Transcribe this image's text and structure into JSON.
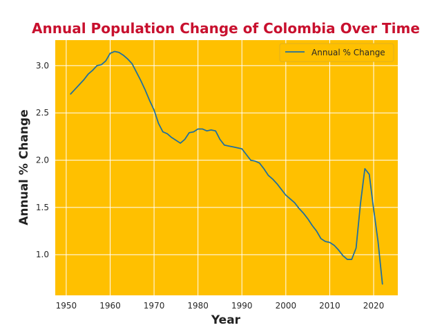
{
  "chart_data": {
    "type": "line",
    "title": "Annual Population Change of Colombia Over Time",
    "xlabel": "Year",
    "ylabel": "Annual % Change",
    "xlim": [
      1947.5,
      2025.5
    ],
    "ylim": [
      0.57,
      3.27
    ],
    "xticks": [
      1950,
      1960,
      1970,
      1980,
      1990,
      2000,
      2010,
      2020
    ],
    "yticks": [
      1.0,
      1.5,
      2.0,
      2.5,
      3.0
    ],
    "xtick_labels": [
      "1950",
      "1960",
      "1970",
      "1980",
      "1990",
      "2000",
      "2010",
      "2020"
    ],
    "ytick_labels": [
      "1.0",
      "1.5",
      "2.0",
      "2.5",
      "3.0"
    ],
    "grid": true,
    "legend_position": "top-right",
    "colors": {
      "plot_background": "#ffc000",
      "grid": "#ffffff",
      "line": "#1f6f9f",
      "title": "#c8102e"
    },
    "series": [
      {
        "name": "Annual % Change",
        "x": [
          1951,
          1952,
          1953,
          1954,
          1955,
          1956,
          1957,
          1958,
          1959,
          1960,
          1961,
          1962,
          1963,
          1964,
          1965,
          1966,
          1967,
          1968,
          1969,
          1970,
          1971,
          1972,
          1973,
          1974,
          1975,
          1976,
          1977,
          1978,
          1979,
          1980,
          1981,
          1982,
          1983,
          1984,
          1985,
          1986,
          1987,
          1988,
          1989,
          1990,
          1991,
          1992,
          1993,
          1994,
          1995,
          1996,
          1997,
          1998,
          1999,
          2000,
          2001,
          2002,
          2003,
          2004,
          2005,
          2006,
          2007,
          2008,
          2009,
          2010,
          2011,
          2012,
          2013,
          2014,
          2015,
          2016,
          2017,
          2018,
          2019,
          2020,
          2021,
          2022
        ],
        "values": [
          2.7,
          2.75,
          2.8,
          2.85,
          2.91,
          2.95,
          3.0,
          3.01,
          3.05,
          3.13,
          3.15,
          3.14,
          3.11,
          3.07,
          3.02,
          2.93,
          2.84,
          2.74,
          2.63,
          2.53,
          2.39,
          2.3,
          2.28,
          2.24,
          2.21,
          2.18,
          2.22,
          2.29,
          2.3,
          2.33,
          2.33,
          2.31,
          2.32,
          2.31,
          2.22,
          2.16,
          2.15,
          2.14,
          2.13,
          2.12,
          2.06,
          2.0,
          1.99,
          1.97,
          1.91,
          1.84,
          1.8,
          1.75,
          1.69,
          1.63,
          1.59,
          1.55,
          1.49,
          1.44,
          1.38,
          1.31,
          1.25,
          1.17,
          1.14,
          1.13,
          1.1,
          1.05,
          0.99,
          0.95,
          0.95,
          1.07,
          1.54,
          1.91,
          1.85,
          1.48,
          1.14,
          0.69
        ]
      }
    ]
  }
}
